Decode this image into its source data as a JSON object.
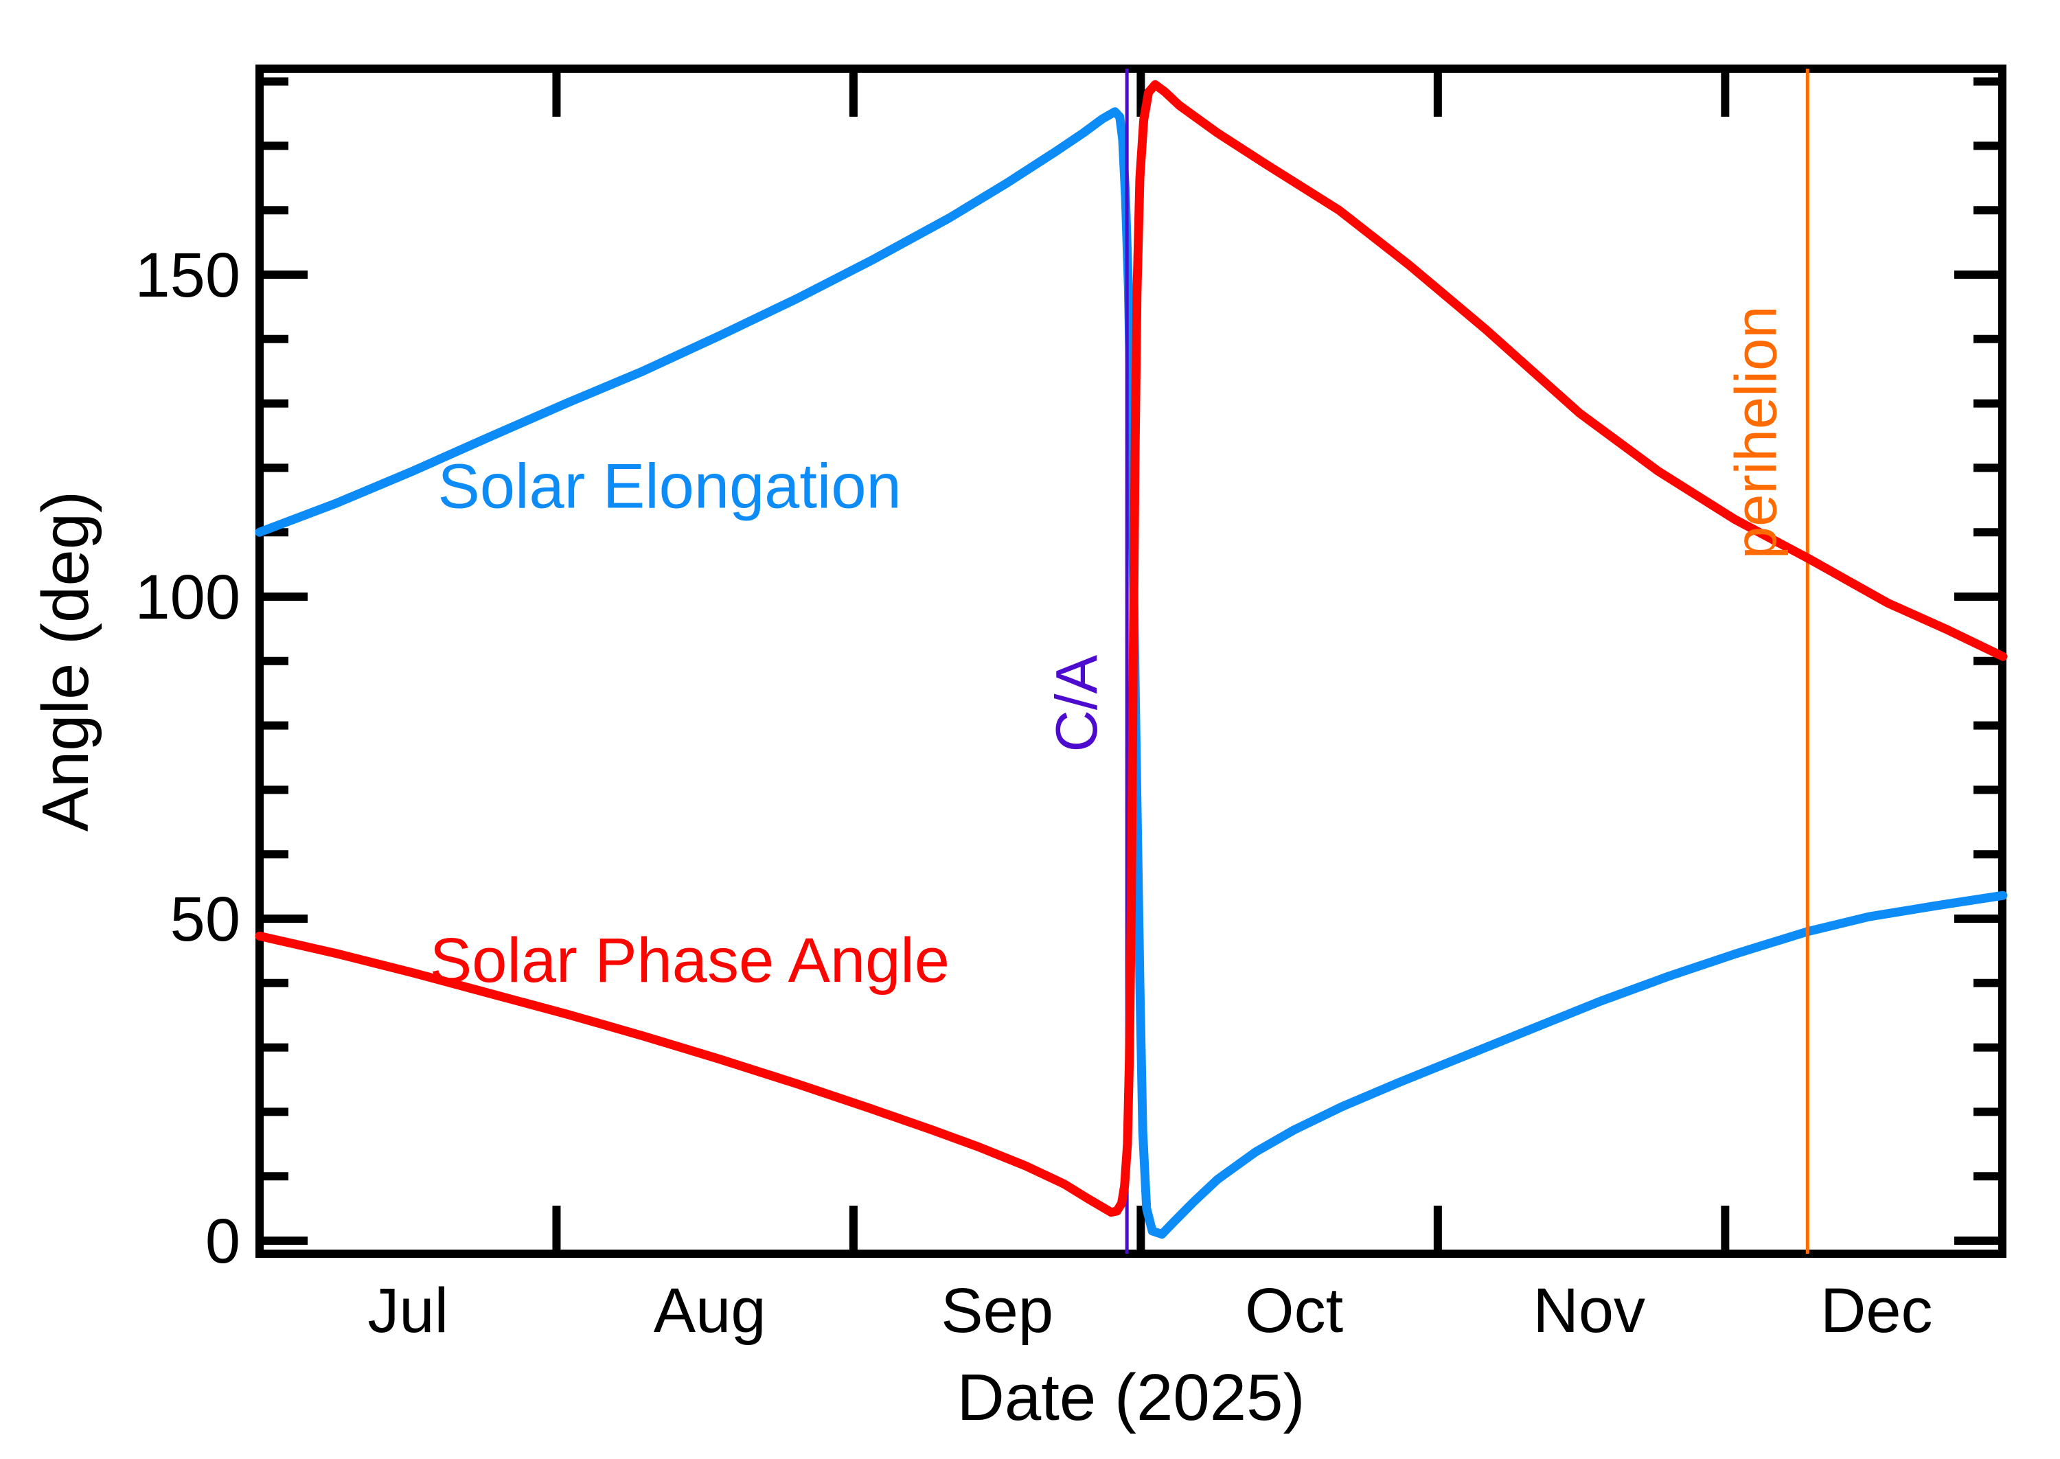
{
  "figure": {
    "background": "#ffffff",
    "plot_border_color": "#000000"
  },
  "chart_data": {
    "type": "line",
    "title": "",
    "xlabel": "Date (2025)",
    "ylabel": "Angle (deg)",
    "x_unit": "days since 2025-07-01",
    "x_range": [
      0,
      182
    ],
    "ylim": [
      0,
      182
    ],
    "grid": false,
    "legend_position": "labels drawn on curves",
    "y_tick_labels": [
      "0",
      "50",
      "100",
      "150"
    ],
    "y_major_ticks": [
      0,
      50,
      100,
      150
    ],
    "y_minor_step": 10,
    "x_month_boundaries_days": [
      31,
      62,
      92,
      123,
      153
    ],
    "x_month_label_names": [
      "Jul",
      "Aug",
      "Sep",
      "Oct",
      "Nov",
      "Dec"
    ],
    "x_month_label_days": [
      15.5,
      47,
      77,
      108,
      138.8,
      168.8
    ],
    "series": [
      {
        "name": "Solar Elongation",
        "color": "#0d8cf8",
        "points": [
          [
            0,
            110
          ],
          [
            8,
            114.5
          ],
          [
            16,
            119.5
          ],
          [
            24,
            124.8
          ],
          [
            32,
            130
          ],
          [
            40,
            135
          ],
          [
            48,
            140.5
          ],
          [
            56,
            146.2
          ],
          [
            64,
            152.3
          ],
          [
            72,
            158.8
          ],
          [
            78,
            164.2
          ],
          [
            83,
            169
          ],
          [
            86,
            172
          ],
          [
            88,
            174.2
          ],
          [
            89.3,
            175.3
          ],
          [
            89.8,
            174.5
          ],
          [
            90.1,
            171
          ],
          [
            90.4,
            162
          ],
          [
            90.7,
            148
          ],
          [
            91,
            125
          ],
          [
            91.3,
            97
          ],
          [
            91.6,
            68
          ],
          [
            91.9,
            40
          ],
          [
            92.2,
            17
          ],
          [
            92.6,
            5
          ],
          [
            93.2,
            1.5
          ],
          [
            94.2,
            1
          ],
          [
            95.5,
            3
          ],
          [
            97.5,
            6
          ],
          [
            100,
            9.5
          ],
          [
            104,
            13.8
          ],
          [
            108,
            17.2
          ],
          [
            113,
            20.8
          ],
          [
            119,
            24.6
          ],
          [
            126,
            28.8
          ],
          [
            133,
            33
          ],
          [
            140,
            37.2
          ],
          [
            147,
            41
          ],
          [
            154,
            44.5
          ],
          [
            161.6,
            48
          ],
          [
            168,
            50.3
          ],
          [
            175,
            52
          ],
          [
            182,
            53.6
          ]
        ]
      },
      {
        "name": "Solar Phase Angle",
        "color": "#fb0500",
        "points": [
          [
            0,
            47.3
          ],
          [
            8,
            44.6
          ],
          [
            16,
            41.6
          ],
          [
            24,
            38.4
          ],
          [
            32,
            35.2
          ],
          [
            40,
            31.8
          ],
          [
            48,
            28.2
          ],
          [
            56,
            24.4
          ],
          [
            64,
            20.4
          ],
          [
            70,
            17.3
          ],
          [
            75,
            14.6
          ],
          [
            80,
            11.6
          ],
          [
            84,
            8.8
          ],
          [
            86.5,
            6.5
          ],
          [
            88,
            5.2
          ],
          [
            88.9,
            4.4
          ],
          [
            89.5,
            4.6
          ],
          [
            90,
            5.8
          ],
          [
            90.3,
            8.5
          ],
          [
            90.6,
            15
          ],
          [
            90.8,
            28
          ],
          [
            91,
            52
          ],
          [
            91.2,
            88
          ],
          [
            91.4,
            122
          ],
          [
            91.6,
            147
          ],
          [
            91.9,
            165
          ],
          [
            92.3,
            174
          ],
          [
            92.8,
            178.3
          ],
          [
            93.5,
            179.5
          ],
          [
            94.5,
            178.4
          ],
          [
            96,
            176.3
          ],
          [
            100,
            172
          ],
          [
            105,
            167.2
          ],
          [
            112.7,
            160
          ],
          [
            120,
            151.5
          ],
          [
            128,
            141.5
          ],
          [
            137.8,
            128.5
          ],
          [
            146,
            119.5
          ],
          [
            154,
            112
          ],
          [
            161.6,
            106
          ],
          [
            170,
            99
          ],
          [
            176,
            95
          ],
          [
            182,
            90.7
          ]
        ]
      }
    ],
    "events": [
      {
        "name": "C/A",
        "day": 90.55,
        "color": "#4e0bd0",
        "approx_date": "late Sep 2025"
      },
      {
        "name": "perihelion",
        "day": 161.6,
        "color": "#ff6b00",
        "approx_date": "early Dec 2025"
      }
    ],
    "annotations": [
      {
        "text": "Solar Elongation",
        "color": "#0d8cf8",
        "day": 42.8,
        "deg": 113.8,
        "rotate": 0
      },
      {
        "text": "Solar Phase Angle",
        "color": "#fb0500",
        "day": 44.9,
        "deg": 40.2,
        "rotate": 0
      },
      {
        "text": "C/A",
        "color": "#4e0bd0",
        "day": 87.4,
        "deg": 83.4,
        "rotate": -90
      },
      {
        "text": "perihelion",
        "color": "#ff6b00",
        "day": 158.3,
        "deg": 125.5,
        "rotate": -90
      }
    ]
  }
}
